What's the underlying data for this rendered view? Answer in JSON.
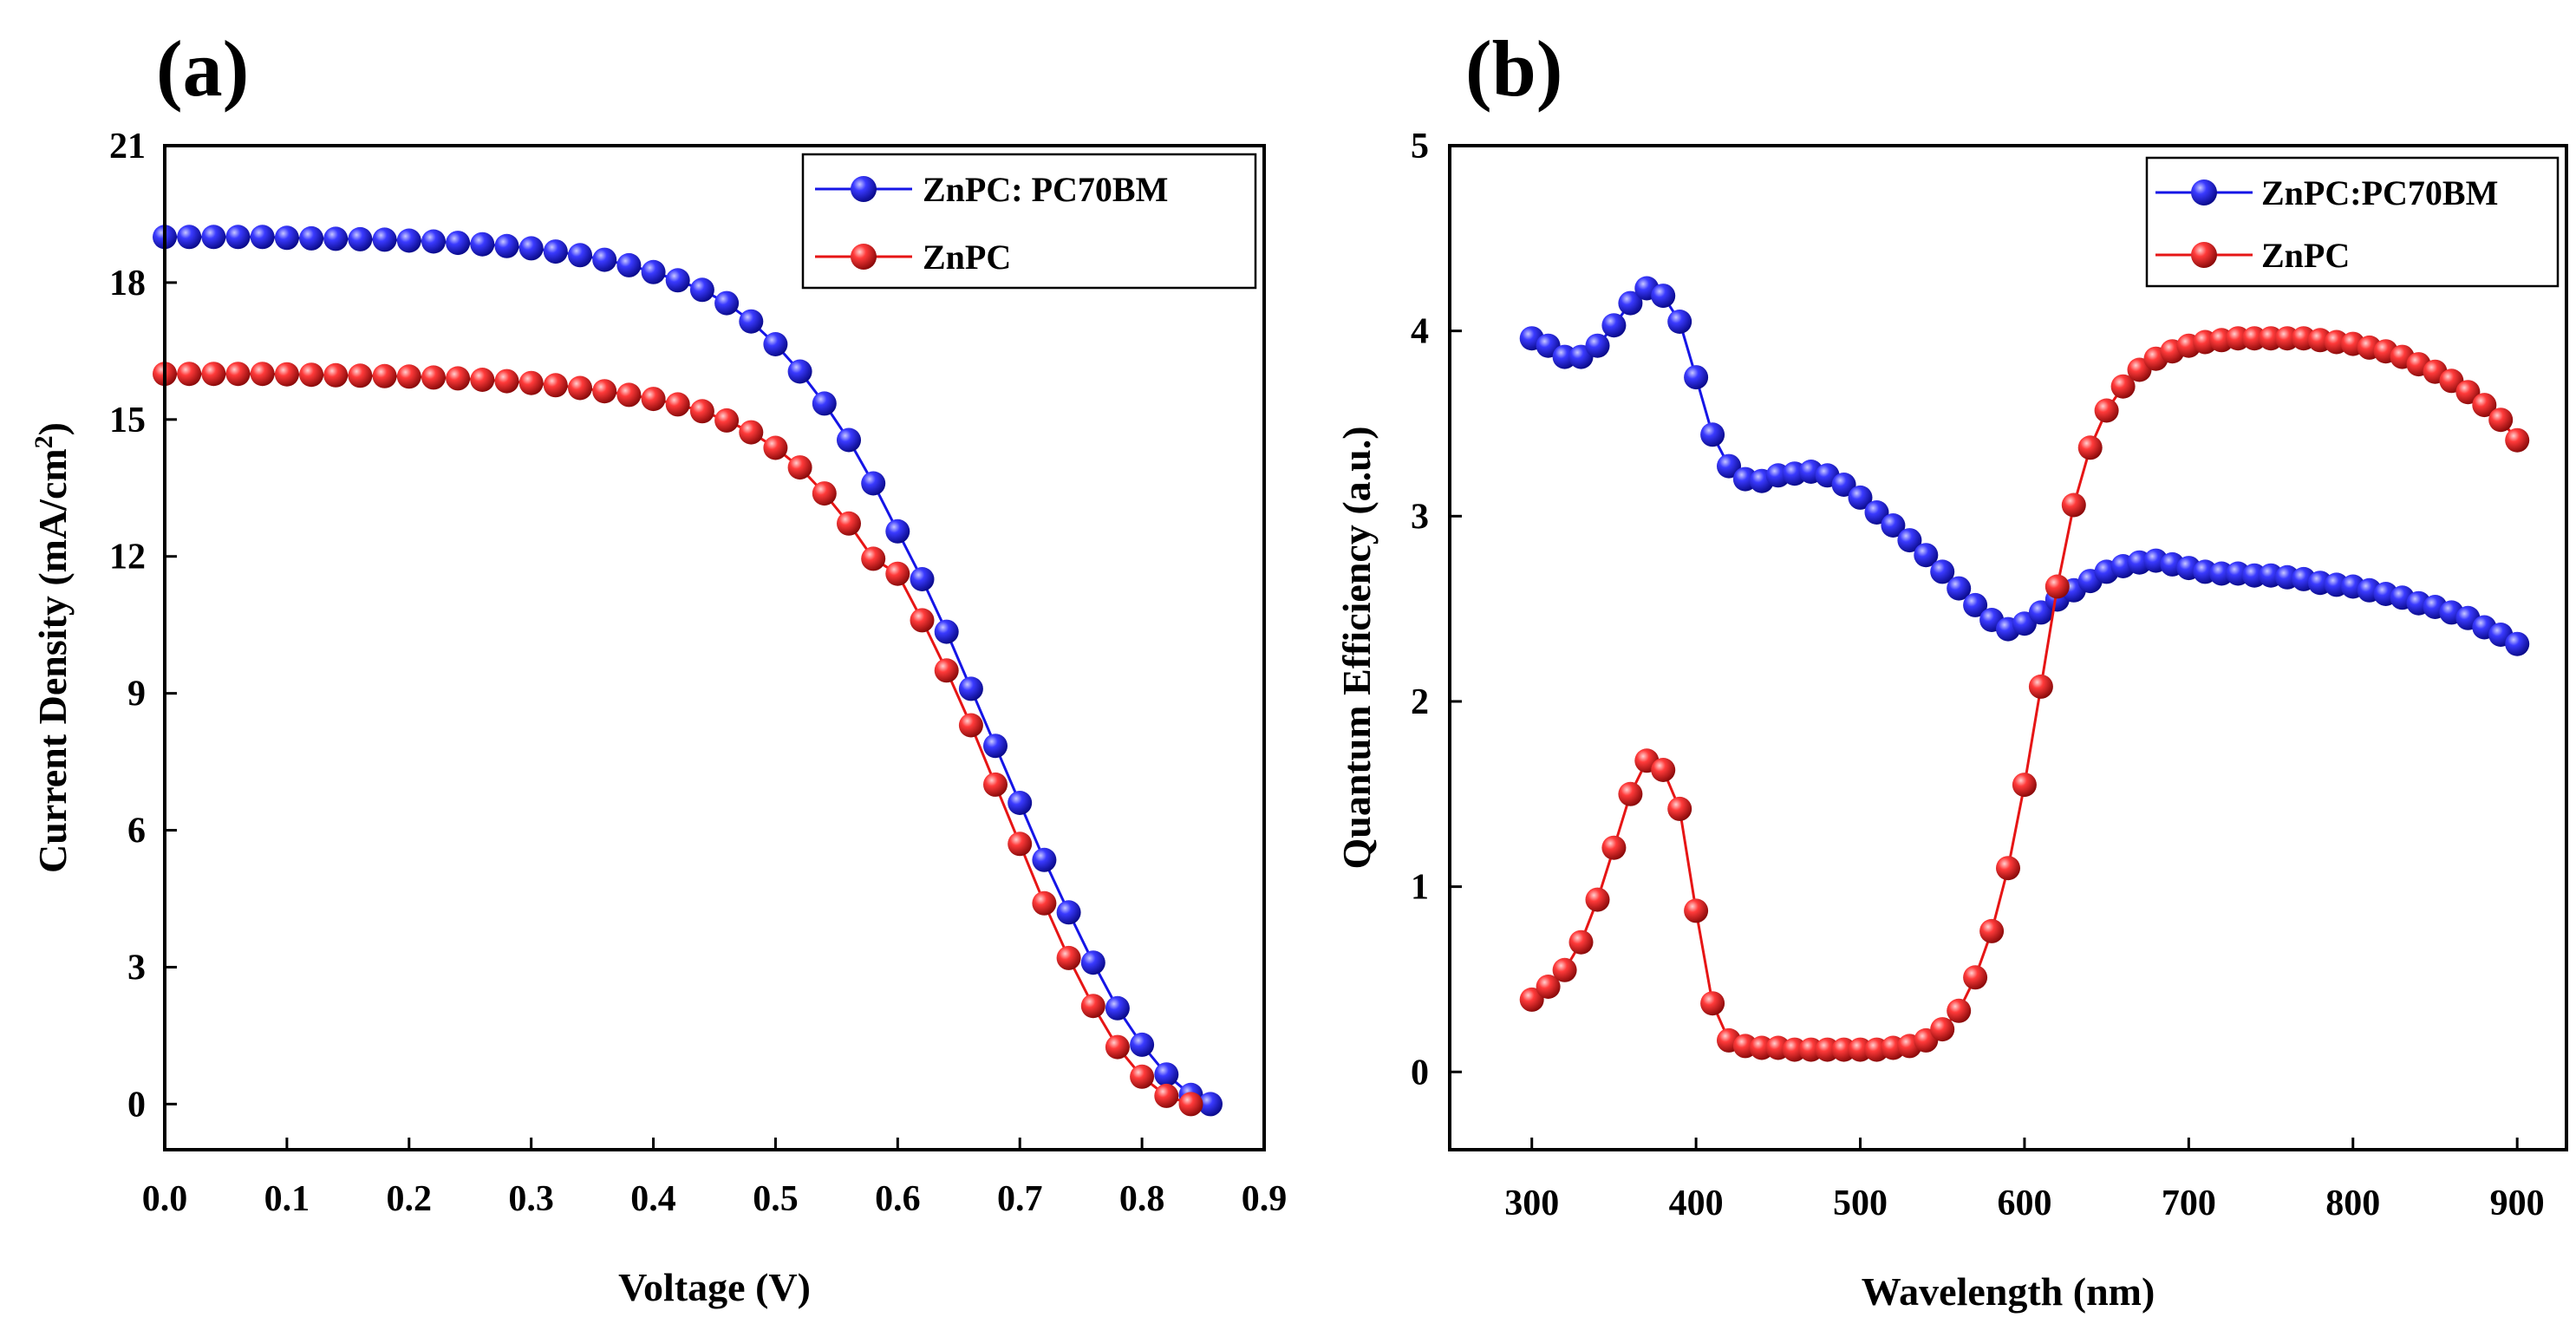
{
  "chart_data": [
    {
      "type": "scatter",
      "panel_label": "(a)",
      "xlabel": "Voltage (V)",
      "ylabel": "Current Density (mA/cm",
      "ylabel_sup": "2",
      "ylabel_end": ")",
      "xlim": [
        0.0,
        0.9
      ],
      "ylim": [
        -1.0,
        21.0
      ],
      "xticks": [
        "0.0",
        "0.1",
        "0.2",
        "0.3",
        "0.4",
        "0.5",
        "0.6",
        "0.7",
        "0.8",
        "0.9"
      ],
      "yticks": [
        "0",
        "3",
        "6",
        "9",
        "12",
        "15",
        "18",
        "21"
      ],
      "legend_position": "top-right",
      "series": [
        {
          "name": "ZnPC: PC70BM",
          "color": "#1515e6",
          "x": [
            0.0,
            0.02,
            0.04,
            0.06,
            0.08,
            0.1,
            0.12,
            0.14,
            0.16,
            0.18,
            0.2,
            0.22,
            0.24,
            0.26,
            0.28,
            0.3,
            0.32,
            0.34,
            0.36,
            0.38,
            0.4,
            0.42,
            0.44,
            0.46,
            0.48,
            0.5,
            0.52,
            0.54,
            0.56,
            0.58,
            0.6,
            0.62,
            0.64,
            0.66,
            0.68,
            0.7,
            0.72,
            0.74,
            0.76,
            0.78,
            0.8,
            0.82,
            0.84,
            0.856
          ],
          "y": [
            19.0,
            19.0,
            19.0,
            19.0,
            19.0,
            18.98,
            18.97,
            18.96,
            18.95,
            18.94,
            18.92,
            18.9,
            18.87,
            18.84,
            18.8,
            18.75,
            18.68,
            18.6,
            18.5,
            18.38,
            18.23,
            18.05,
            17.84,
            17.55,
            17.15,
            16.65,
            16.05,
            15.35,
            14.55,
            13.6,
            12.55,
            11.5,
            10.35,
            9.1,
            7.85,
            6.6,
            5.35,
            4.2,
            3.1,
            2.1,
            1.3,
            0.65,
            0.2,
            0.0
          ]
        },
        {
          "name": "ZnPC",
          "color": "#e61515",
          "x": [
            0.0,
            0.02,
            0.04,
            0.06,
            0.08,
            0.1,
            0.12,
            0.14,
            0.16,
            0.18,
            0.2,
            0.22,
            0.24,
            0.26,
            0.28,
            0.3,
            0.32,
            0.34,
            0.36,
            0.38,
            0.4,
            0.42,
            0.44,
            0.46,
            0.48,
            0.5,
            0.52,
            0.54,
            0.56,
            0.58,
            0.6,
            0.62,
            0.64,
            0.66,
            0.68,
            0.7,
            0.72,
            0.74,
            0.76,
            0.78,
            0.8,
            0.82,
            0.84
          ],
          "y": [
            16.0,
            16.0,
            16.0,
            16.0,
            16.0,
            15.99,
            15.98,
            15.97,
            15.96,
            15.95,
            15.94,
            15.92,
            15.9,
            15.87,
            15.84,
            15.8,
            15.75,
            15.69,
            15.62,
            15.54,
            15.45,
            15.33,
            15.18,
            14.98,
            14.72,
            14.38,
            13.95,
            13.38,
            12.72,
            11.95,
            11.62,
            10.6,
            9.5,
            8.3,
            7.0,
            5.7,
            4.4,
            3.2,
            2.15,
            1.25,
            0.6,
            0.18,
            0.0
          ]
        }
      ]
    },
    {
      "type": "scatter",
      "panel_label": "(b)",
      "xlabel": "Wavelength (nm)",
      "ylabel": "Quantum Efficiency (a.u.)",
      "xlim": [
        250,
        930
      ],
      "ylim": [
        -0.42,
        5.0
      ],
      "xticks": [
        "300",
        "400",
        "500",
        "600",
        "700",
        "800",
        "900"
      ],
      "yticks": [
        "0",
        "1",
        "2",
        "3",
        "4",
        "5"
      ],
      "legend_position": "top-right",
      "series": [
        {
          "name": "ZnPC:PC70BM",
          "color": "#1515e6",
          "x": [
            300,
            310,
            320,
            330,
            340,
            350,
            360,
            370,
            380,
            390,
            400,
            410,
            420,
            430,
            440,
            450,
            460,
            470,
            480,
            490,
            500,
            510,
            520,
            530,
            540,
            550,
            560,
            570,
            580,
            590,
            600,
            610,
            620,
            630,
            640,
            650,
            660,
            670,
            680,
            690,
            700,
            710,
            720,
            730,
            740,
            750,
            760,
            770,
            780,
            790,
            800,
            810,
            820,
            830,
            840,
            850,
            860,
            870,
            880,
            890,
            900
          ],
          "y": [
            3.96,
            3.92,
            3.86,
            3.86,
            3.92,
            4.03,
            4.15,
            4.23,
            4.19,
            4.05,
            3.75,
            3.44,
            3.27,
            3.2,
            3.19,
            3.22,
            3.23,
            3.24,
            3.22,
            3.17,
            3.1,
            3.02,
            2.95,
            2.87,
            2.79,
            2.7,
            2.61,
            2.52,
            2.44,
            2.39,
            2.42,
            2.48,
            2.55,
            2.6,
            2.65,
            2.7,
            2.73,
            2.75,
            2.76,
            2.74,
            2.72,
            2.7,
            2.69,
            2.69,
            2.68,
            2.68,
            2.67,
            2.66,
            2.64,
            2.63,
            2.62,
            2.6,
            2.58,
            2.56,
            2.53,
            2.51,
            2.48,
            2.45,
            2.4,
            2.36,
            2.31
          ]
        },
        {
          "name": "ZnPC",
          "color": "#e61515",
          "x": [
            300,
            310,
            320,
            330,
            340,
            350,
            360,
            370,
            380,
            390,
            400,
            410,
            420,
            430,
            440,
            450,
            460,
            470,
            480,
            490,
            500,
            510,
            520,
            530,
            540,
            550,
            560,
            570,
            580,
            590,
            600,
            610,
            620,
            630,
            640,
            650,
            660,
            670,
            680,
            690,
            700,
            710,
            720,
            730,
            740,
            750,
            760,
            770,
            780,
            790,
            800,
            810,
            820,
            830,
            840,
            850,
            860,
            870,
            880,
            890,
            900
          ],
          "y": [
            0.39,
            0.46,
            0.55,
            0.7,
            0.93,
            1.21,
            1.5,
            1.68,
            1.63,
            1.42,
            0.87,
            0.37,
            0.17,
            0.14,
            0.13,
            0.13,
            0.12,
            0.12,
            0.12,
            0.12,
            0.12,
            0.12,
            0.13,
            0.14,
            0.17,
            0.23,
            0.33,
            0.51,
            0.76,
            1.1,
            1.55,
            2.08,
            2.62,
            3.06,
            3.37,
            3.57,
            3.7,
            3.79,
            3.85,
            3.89,
            3.92,
            3.94,
            3.95,
            3.96,
            3.96,
            3.96,
            3.96,
            3.96,
            3.95,
            3.94,
            3.93,
            3.91,
            3.89,
            3.86,
            3.82,
            3.78,
            3.73,
            3.67,
            3.6,
            3.52,
            3.41
          ]
        }
      ]
    }
  ]
}
